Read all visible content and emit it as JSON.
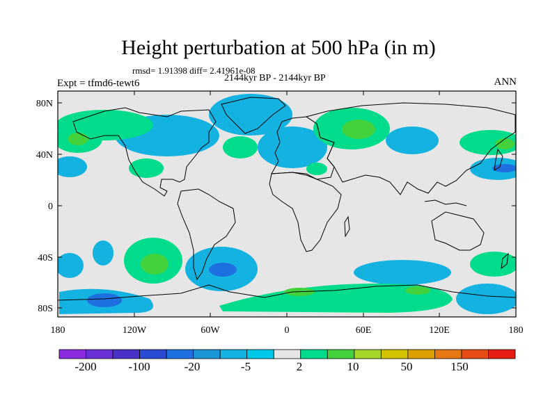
{
  "title": "Height perturbation at 500 hPa (in m)",
  "stats": "rmsd= 1.91398 diff= 2.41961e-08",
  "period": "2144kyr BP - 2144kyr BP",
  "experiment": "Expt = tfmd6-tewt6",
  "season": "ANN",
  "lat_labels": [
    "80N",
    "40N",
    "0",
    "40S",
    "80S"
  ],
  "lon_labels": [
    "180",
    "120W",
    "60W",
    "0",
    "60E",
    "120E",
    "180"
  ],
  "colorbar": {
    "colors": [
      "#8a2be2",
      "#6a2fd8",
      "#4a2fc8",
      "#2a4ad6",
      "#1e70e0",
      "#1a95d8",
      "#14b2e0",
      "#00c8e8",
      "#e6e6e6",
      "#00dc8c",
      "#44d23c",
      "#a6d62a",
      "#d2c200",
      "#dca000",
      "#e67814",
      "#e64c14",
      "#e61e14"
    ],
    "labels": [
      "-200",
      "-100",
      "-20",
      "-5",
      "2",
      "10",
      "50",
      "150"
    ]
  }
}
